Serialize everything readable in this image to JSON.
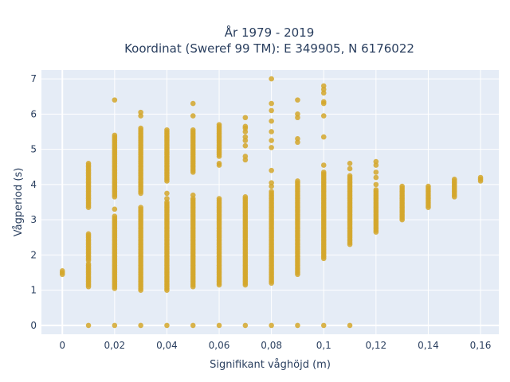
{
  "chart_data": {
    "type": "scatter",
    "title": "År 1979 - 2019",
    "subtitle": "Koordinat (Sweref 99 TM): E 349905, N 6176022",
    "xlabel": "Signifikant våghöjd (m)",
    "ylabel": "Vågperiod (s)",
    "xlim": [
      -0.008,
      0.167
    ],
    "ylim": [
      -0.25,
      7.25
    ],
    "x_ticks": [
      0,
      0.02,
      0.04,
      0.06,
      0.08,
      0.1,
      0.12,
      0.14,
      0.16
    ],
    "x_tick_labels": [
      "0",
      "0,02",
      "0,04",
      "0,06",
      "0,08",
      "0,1",
      "0,12",
      "0,14",
      "0,16"
    ],
    "y_ticks": [
      0,
      1,
      2,
      3,
      4,
      5,
      6,
      7
    ],
    "y_tick_labels": [
      "0",
      "1",
      "2",
      "3",
      "4",
      "5",
      "6",
      "7"
    ],
    "grid": true,
    "plot_bg": "#e5ecf6",
    "marker_color": "#d4a72c",
    "series": [
      {
        "columns": [
          {
            "x": 0,
            "ranges": [
              [
                1.45,
                1.55
              ]
            ],
            "points": []
          },
          {
            "x": 0.01,
            "ranges": [
              [
                1.1,
                1.75
              ],
              [
                1.85,
                2.6
              ],
              [
                3.35,
                4.6
              ]
            ],
            "points": [
              0
            ]
          },
          {
            "x": 0.02,
            "ranges": [
              [
                1.05,
                3.1
              ],
              [
                3.65,
                5.4
              ]
            ],
            "points": [
              0,
              3.3,
              6.4
            ]
          },
          {
            "x": 0.03,
            "ranges": [
              [
                1.0,
                3.35
              ],
              [
                3.75,
                5.55
              ]
            ],
            "points": [
              0,
              5.6,
              5.95,
              6.05
            ]
          },
          {
            "x": 0.04,
            "ranges": [
              [
                1.0,
                3.5
              ],
              [
                4.1,
                5.55
              ]
            ],
            "points": [
              0,
              3.75,
              3.6
            ]
          },
          {
            "x": 0.05,
            "ranges": [
              [
                1.1,
                3.6
              ],
              [
                4.35,
                5.55
              ]
            ],
            "points": [
              0,
              3.7,
              5.95,
              6.3
            ]
          },
          {
            "x": 0.06,
            "ranges": [
              [
                1.15,
                3.6
              ],
              [
                4.8,
                5.7
              ]
            ],
            "points": [
              0,
              4.55,
              4.6
            ]
          },
          {
            "x": 0.07,
            "ranges": [
              [
                1.15,
                3.65
              ]
            ],
            "points": [
              0,
              4.7,
              4.8,
              5.1,
              5.25,
              5.35,
              5.5,
              5.6,
              5.65,
              5.9
            ]
          },
          {
            "x": 0.08,
            "ranges": [
              [
                1.2,
                3.8
              ]
            ],
            "points": [
              0,
              3.95,
              4.05,
              4.4,
              5.05,
              5.25,
              5.5,
              5.8,
              6.1,
              6.3,
              7.0
            ]
          },
          {
            "x": 0.09,
            "ranges": [
              [
                1.45,
                4.1
              ]
            ],
            "points": [
              0,
              5.2,
              5.3,
              5.9,
              6.0,
              6.4
            ]
          },
          {
            "x": 0.1,
            "ranges": [
              [
                1.9,
                4.35
              ]
            ],
            "points": [
              0,
              4.55,
              5.35,
              5.95,
              6.3,
              6.35,
              6.6,
              6.7,
              6.8
            ]
          },
          {
            "x": 0.11,
            "ranges": [
              [
                2.3,
                4.25
              ]
            ],
            "points": [
              0,
              4.45,
              4.6
            ]
          },
          {
            "x": 0.12,
            "ranges": [
              [
                2.65,
                3.85
              ]
            ],
            "points": [
              4.0,
              4.2,
              4.35,
              4.55,
              4.65
            ]
          },
          {
            "x": 0.13,
            "ranges": [
              [
                3.0,
                3.95
              ]
            ],
            "points": []
          },
          {
            "x": 0.14,
            "ranges": [
              [
                3.35,
                3.95
              ]
            ],
            "points": []
          },
          {
            "x": 0.15,
            "ranges": [
              [
                3.65,
                4.15
              ]
            ],
            "points": []
          },
          {
            "x": 0.16,
            "ranges": [
              [
                4.1,
                4.2
              ]
            ],
            "points": []
          }
        ]
      }
    ]
  }
}
